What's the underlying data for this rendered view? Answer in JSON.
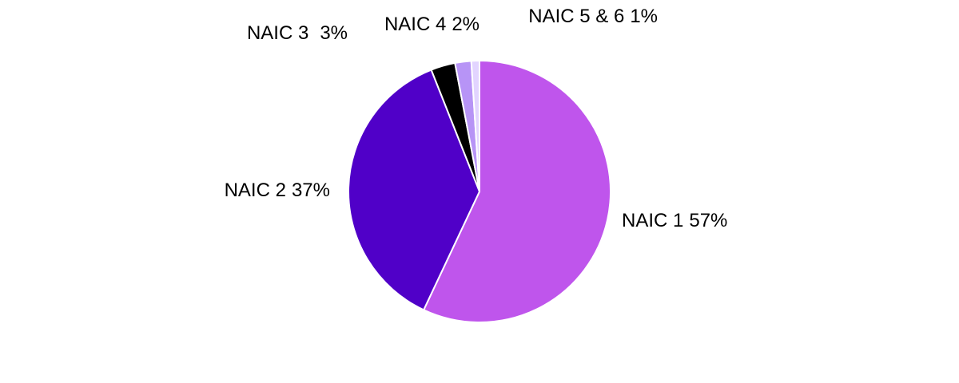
{
  "chart_data": {
    "type": "pie",
    "categories": [
      "NAIC 1",
      "NAIC 2",
      "NAIC 3",
      "NAIC 4",
      "NAIC 5 & 6"
    ],
    "values": [
      57,
      37,
      3,
      2,
      1
    ],
    "value_labels": [
      "57%",
      "37%",
      "3%",
      "2%",
      "1%"
    ],
    "colors": [
      "#bf55ec",
      "#5000c8",
      "#000000",
      "#b794f6",
      "#e2d4ff"
    ]
  }
}
